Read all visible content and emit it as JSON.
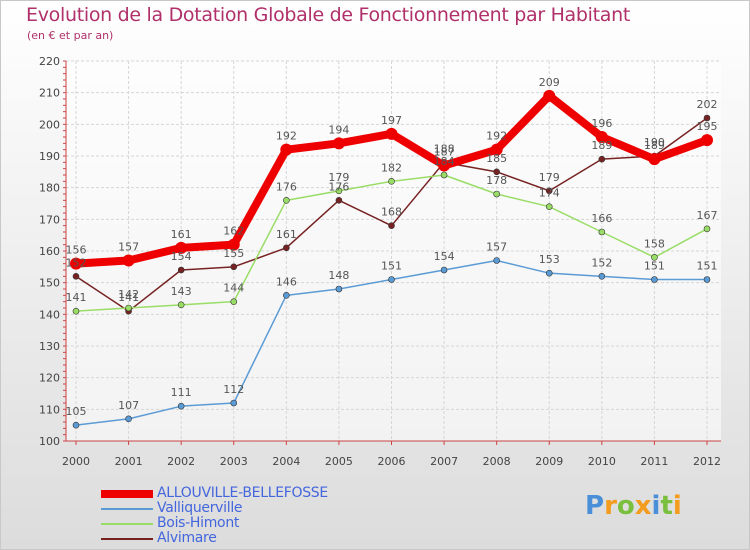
{
  "chart_data": {
    "type": "line",
    "title": "Evolution de la Dotation Globale de Fonctionnement par Habitant",
    "subtitle": "(en € et par an)",
    "xlabel": "",
    "ylabel": "",
    "x": [
      "2000",
      "2001",
      "2002",
      "2003",
      "2004",
      "2005",
      "2006",
      "2007",
      "2008",
      "2009",
      "2010",
      "2011",
      "2012"
    ],
    "ylim": [
      100,
      220
    ],
    "yticks": [
      100,
      110,
      120,
      130,
      140,
      150,
      160,
      170,
      180,
      190,
      200,
      210,
      220
    ],
    "grid": true,
    "legend_position": "bottom-left",
    "series": [
      {
        "name": "ALLOUVILLE-BELLEFOSSE",
        "color": "#ee0000",
        "values": [
          156,
          157,
          161,
          162,
          192,
          194,
          197,
          187,
          192,
          209,
          196,
          189,
          195
        ]
      },
      {
        "name": "Valliquerville",
        "color": "#5b9bd5",
        "values": [
          105,
          107,
          111,
          112,
          146,
          148,
          151,
          154,
          157,
          153,
          152,
          151,
          151
        ]
      },
      {
        "name": "Bois-Himont",
        "color": "#99dd66",
        "values": [
          141,
          142,
          143,
          144,
          176,
          179,
          182,
          184,
          178,
          174,
          166,
          158,
          167
        ]
      },
      {
        "name": "Alvimare",
        "color": "#772222",
        "values": [
          152,
          141,
          154,
          155,
          161,
          176,
          168,
          188,
          185,
          179,
          189,
          190,
          202
        ]
      }
    ]
  },
  "logo": {
    "letters": [
      "P",
      "r",
      "o",
      "x",
      "i",
      "t",
      "i"
    ]
  }
}
